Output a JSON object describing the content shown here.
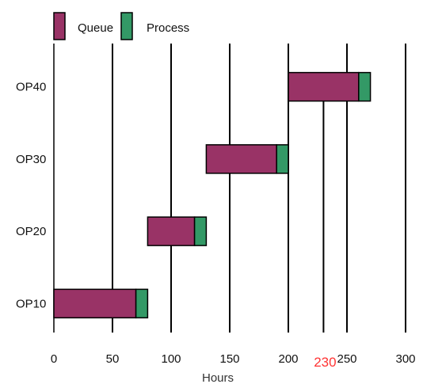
{
  "chart_data": {
    "type": "bar",
    "orientation": "horizontal",
    "stacked": true,
    "categories": [
      "OP10",
      "OP20",
      "OP30",
      "OP40"
    ],
    "series": [
      {
        "name": "Queue",
        "color": "#993366",
        "start": [
          0,
          80,
          130,
          200
        ],
        "values": [
          70,
          40,
          60,
          60
        ]
      },
      {
        "name": "Process",
        "color": "#339966",
        "start": [
          70,
          120,
          190,
          260
        ],
        "values": [
          10,
          10,
          10,
          10
        ]
      }
    ],
    "xlabel": "Hours",
    "xlim": [
      0,
      300
    ],
    "xticks": [
      "0",
      "50",
      "100",
      "150",
      "200",
      "250",
      "300"
    ],
    "grid": true,
    "legend": "top-left",
    "annotation": {
      "value": 230,
      "text": "230",
      "color": "#ff3333"
    }
  }
}
